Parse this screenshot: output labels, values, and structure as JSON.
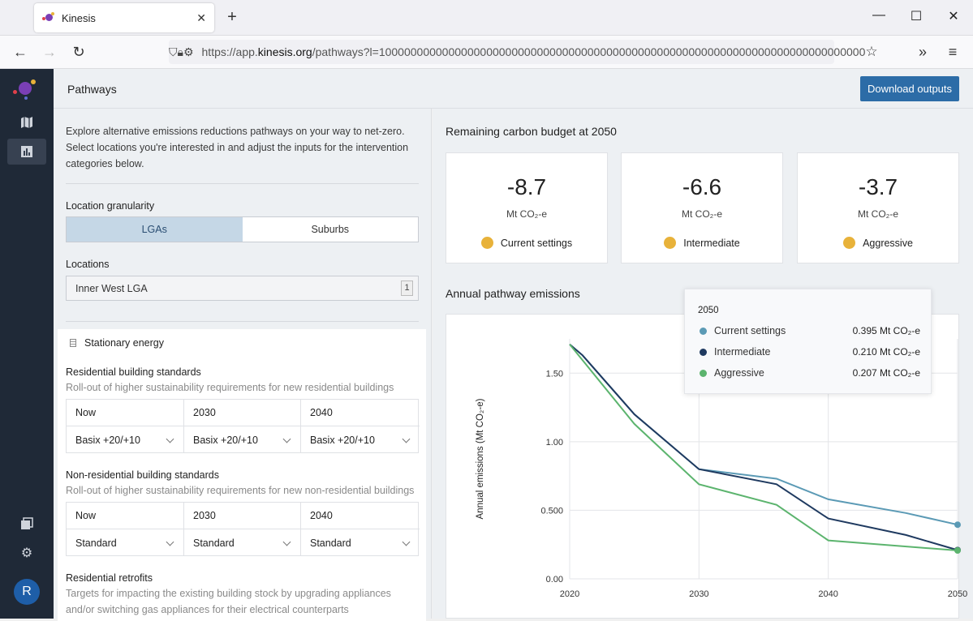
{
  "browser": {
    "tab_title": "Kinesis",
    "url_prefix": "https://app.",
    "url_domain": "kinesis.org",
    "url_rest": "/pathways?l=10000000000000000000000000000000000000000000000000000000000000000000000000000"
  },
  "header": {
    "page_title": "Pathways",
    "download_label": "Download outputs"
  },
  "sidebar": {
    "avatar_initial": "R"
  },
  "left": {
    "intro": "Explore alternative emissions reductions pathways on your way to net-zero. Select locations you're interested in and adjust the inputs for the intervention categories below.",
    "granularity_label": "Location granularity",
    "granularity_options": [
      "LGAs",
      "Suburbs"
    ],
    "locations_label": "Locations",
    "locations_value": "Inner West LGA",
    "locations_count": "1",
    "section_title": "Stationary energy",
    "interventions": [
      {
        "title": "Residential building standards",
        "desc": "Roll-out of higher sustainability requirements for new residential buildings",
        "columns": [
          "Now",
          "2030",
          "2040"
        ],
        "values": [
          "Basix +20/+10",
          "Basix +20/+10",
          "Basix +20/+10"
        ]
      },
      {
        "title": "Non-residential building standards",
        "desc": "Roll-out of higher sustainability requirements for new non-residential buildings",
        "columns": [
          "Now",
          "2030",
          "2040"
        ],
        "values": [
          "Standard",
          "Standard",
          "Standard"
        ]
      },
      {
        "title": "Residential retrofits",
        "desc": "Targets for impacting the existing building stock by upgrading appliances and/or switching gas appliances for their electrical counterparts"
      }
    ]
  },
  "right": {
    "budget_title": "Remaining carbon budget at 2050",
    "budget_unit": "Mt CO₂-e",
    "budget_dot_color": "#e8b23a",
    "budgets": [
      {
        "value": "-8.7",
        "scenario": "Current settings"
      },
      {
        "value": "-6.6",
        "scenario": "Intermediate"
      },
      {
        "value": "-3.7",
        "scenario": "Aggressive"
      }
    ],
    "chart_title": "Annual pathway emissions",
    "tooltip": {
      "year": "2050",
      "rows": [
        {
          "name": "Current settings",
          "value": "0.395 Mt CO₂-e",
          "color": "#5b9ab5"
        },
        {
          "name": "Intermediate",
          "value": "0.210 Mt CO₂-e",
          "color": "#1f3a60"
        },
        {
          "name": "Aggressive",
          "value": "0.207 Mt CO₂-e",
          "color": "#5cb46e"
        }
      ]
    }
  },
  "chart_data": {
    "type": "line",
    "title": "",
    "xlabel": "",
    "ylabel": "Annual emissions (Mt CO₂-e)",
    "xlim": [
      2020,
      2050
    ],
    "ylim": [
      0,
      1.75
    ],
    "xticks": [
      "2020",
      "2030",
      "2040",
      "2050"
    ],
    "yticks": [
      "0.00",
      "0.500",
      "1.00",
      "1.50"
    ],
    "series": [
      {
        "name": "Current settings",
        "color": "#5b9ab5",
        "x": [
          2020,
          2021,
          2025,
          2030,
          2036,
          2040,
          2046,
          2050
        ],
        "y": [
          1.71,
          1.63,
          1.2,
          0.8,
          0.73,
          0.58,
          0.48,
          0.395
        ]
      },
      {
        "name": "Intermediate",
        "color": "#1f3a60",
        "x": [
          2020,
          2021,
          2025,
          2030,
          2036,
          2040,
          2046,
          2050
        ],
        "y": [
          1.71,
          1.63,
          1.2,
          0.8,
          0.69,
          0.44,
          0.32,
          0.21
        ]
      },
      {
        "name": "Aggressive",
        "color": "#5cb46e",
        "x": [
          2020,
          2025,
          2030,
          2036,
          2040,
          2050
        ],
        "y": [
          1.71,
          1.13,
          0.69,
          0.54,
          0.28,
          0.207
        ]
      }
    ]
  }
}
